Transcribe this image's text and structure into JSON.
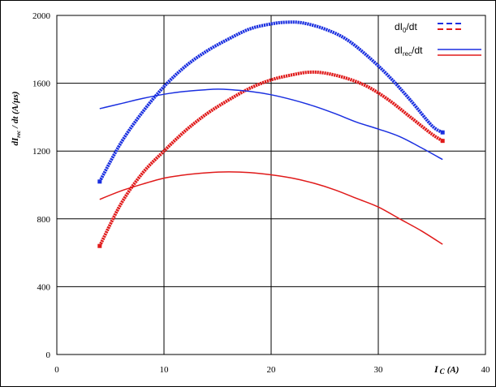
{
  "chart_data": {
    "type": "line",
    "title": "",
    "xlabel_main": "I",
    "xlabel_sub": "C",
    "xlabel_unit": "(A)",
    "ylabel_main": "dI",
    "ylabel_sub": "rec",
    "ylabel_unit": " / dt (A/µs)",
    "xlim": [
      0,
      40
    ],
    "ylim": [
      0,
      2000
    ],
    "xticks": [
      "0",
      "10",
      "20",
      "30",
      "40"
    ],
    "yticks": [
      "0",
      "400",
      "800",
      "1200",
      "1600",
      "2000"
    ],
    "xtick_values": [
      0,
      10,
      20,
      30,
      40
    ],
    "ytick_values": [
      0,
      400,
      800,
      1200,
      1600,
      2000
    ],
    "grid": true,
    "legend_position": "top-right",
    "legend": [
      {
        "main": "dI",
        "sub": "0",
        "tail": "/dt",
        "style": "dashed"
      },
      {
        "main": "dI",
        "sub": "rec",
        "tail": "/dt",
        "style": "solid"
      }
    ],
    "series": [
      {
        "color": "#1a2fe0",
        "style": "dotted-thick",
        "x": [
          4,
          6,
          8,
          10,
          12,
          14,
          16,
          18,
          20,
          21.5,
          23,
          25,
          27,
          29,
          31,
          33,
          35,
          36
        ],
        "y": [
          1020,
          1250,
          1430,
          1580,
          1700,
          1790,
          1860,
          1920,
          1950,
          1960,
          1955,
          1920,
          1860,
          1760,
          1640,
          1500,
          1350,
          1310
        ]
      },
      {
        "color": "#e01a1a",
        "style": "dotted-thick",
        "x": [
          4,
          6,
          8,
          10,
          12,
          14,
          16,
          18,
          20,
          22,
          23.5,
          25,
          27,
          29,
          31,
          33,
          35,
          36
        ],
        "y": [
          640,
          890,
          1070,
          1200,
          1320,
          1420,
          1500,
          1570,
          1620,
          1650,
          1665,
          1660,
          1630,
          1580,
          1500,
          1400,
          1300,
          1260
        ]
      },
      {
        "color": "#1a2fe0",
        "style": "solid-thin",
        "x": [
          4,
          6,
          8,
          10,
          12,
          14,
          15,
          16,
          18,
          20,
          22,
          24,
          26,
          28,
          30,
          32,
          34,
          36
        ],
        "y": [
          1450,
          1480,
          1510,
          1535,
          1552,
          1562,
          1565,
          1563,
          1552,
          1532,
          1502,
          1465,
          1420,
          1370,
          1330,
          1285,
          1220,
          1150
        ]
      },
      {
        "color": "#e01a1a",
        "style": "solid-thin",
        "x": [
          4,
          6,
          8,
          10,
          12,
          14,
          16,
          18,
          20,
          22,
          24,
          26,
          28,
          30,
          32,
          34,
          36
        ],
        "y": [
          915,
          965,
          1005,
          1040,
          1060,
          1072,
          1077,
          1073,
          1060,
          1040,
          1010,
          970,
          920,
          870,
          800,
          730,
          650
        ]
      }
    ]
  }
}
